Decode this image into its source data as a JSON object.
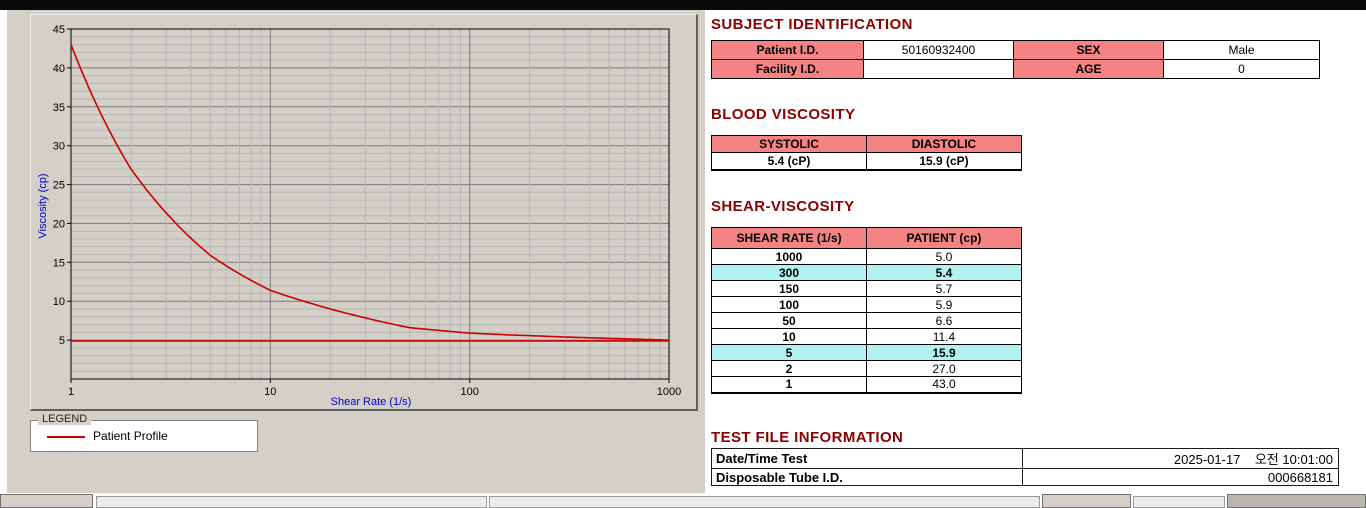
{
  "window": {
    "bg": "#d4d0c8",
    "accent_pink": "#f48484",
    "accent_cyan": "#b2f2f2",
    "heading_color": "#8b0000"
  },
  "chart_data": {
    "type": "line",
    "x_scale": "log",
    "xlim": [
      1,
      1000
    ],
    "ylim": [
      0,
      45
    ],
    "x_ticks": [
      1,
      10,
      100,
      1000
    ],
    "y_ticks": [
      5,
      10,
      15,
      20,
      25,
      30,
      35,
      40,
      45
    ],
    "grid": true,
    "xlabel": "Shear Rate (1/s)",
    "ylabel": "Viscosity (cp)",
    "axis_title_color": "#0000cc",
    "line_color": "#cc0000",
    "baseline": 4.9,
    "x": [
      1,
      2,
      5,
      10,
      50,
      100,
      150,
      300,
      1000
    ],
    "series": [
      {
        "name": "Patient Profile",
        "values": [
          43.0,
          27.0,
          15.9,
          11.4,
          6.6,
          5.9,
          5.7,
          5.4,
          5.0
        ]
      }
    ],
    "legend": {
      "title": "LEGEND",
      "entries": [
        {
          "label": "Patient Profile",
          "color": "#cc0000"
        }
      ]
    },
    "legend_position": "below-left"
  },
  "subject": {
    "title": "SUBJECT IDENTIFICATION",
    "rows": [
      {
        "label1": "Patient I.D.",
        "value1": "50160932400",
        "label2": "SEX",
        "value2": "Male"
      },
      {
        "label1": "Facility I.D.",
        "value1": "",
        "label2": "AGE",
        "value2": "0"
      }
    ]
  },
  "blood_viscosity": {
    "title": "BLOOD VISCOSITY",
    "headers": [
      "SYSTOLIC",
      "DIASTOLIC"
    ],
    "values": [
      "5.4 (cP)",
      "15.9 (cP)"
    ]
  },
  "shear_viscosity": {
    "title": "SHEAR-VISCOSITY",
    "headers": [
      "SHEAR RATE (1/s)",
      "PATIENT (cp)"
    ],
    "rows": [
      {
        "rate": "1000",
        "value": "5.0",
        "highlight": false
      },
      {
        "rate": "300",
        "value": "5.4",
        "highlight": true
      },
      {
        "rate": "150",
        "value": "5.7",
        "highlight": false
      },
      {
        "rate": "100",
        "value": "5.9",
        "highlight": false
      },
      {
        "rate": "50",
        "value": "6.6",
        "highlight": false
      },
      {
        "rate": "10",
        "value": "11.4",
        "highlight": false
      },
      {
        "rate": "5",
        "value": "15.9",
        "highlight": true
      },
      {
        "rate": "2",
        "value": "27.0",
        "highlight": false
      },
      {
        "rate": "1",
        "value": "43.0",
        "highlight": false
      }
    ]
  },
  "test_file": {
    "title": "TEST FILE INFORMATION",
    "rows": [
      {
        "label": "Date/Time Test",
        "value": "2025-01-17    오전 10:01:00"
      },
      {
        "label": "Disposable Tube I.D.",
        "value": "000668181"
      }
    ]
  }
}
